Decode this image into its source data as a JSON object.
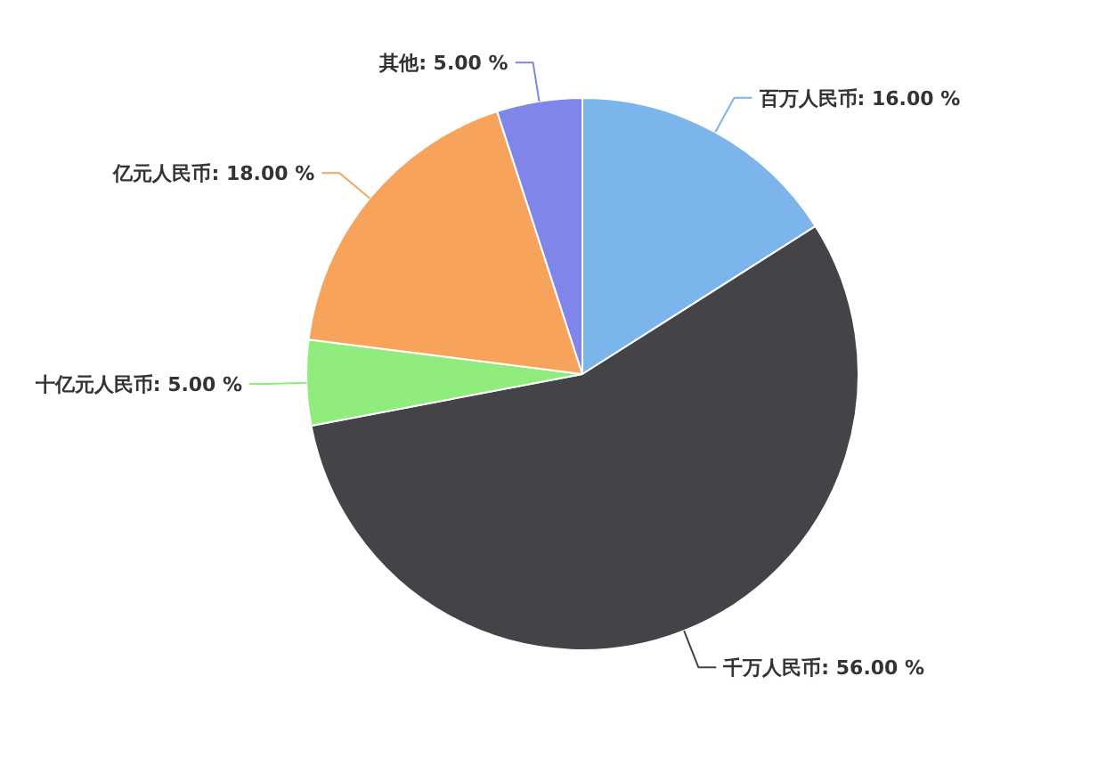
{
  "chart_data": {
    "type": "pie",
    "categories": [
      "百万人民币",
      "千万人民币",
      "十亿元人民币",
      "亿元人民币",
      "其他"
    ],
    "values": [
      16,
      56,
      5,
      18,
      5
    ],
    "colors": [
      "#7cb5ec",
      "#434348",
      "#90ed7d",
      "#f7a35c",
      "#8085e9"
    ],
    "value_labels": [
      "16.00 %",
      "56.00 %",
      "5.00 %",
      "18.00 %",
      "5.00 %"
    ]
  }
}
